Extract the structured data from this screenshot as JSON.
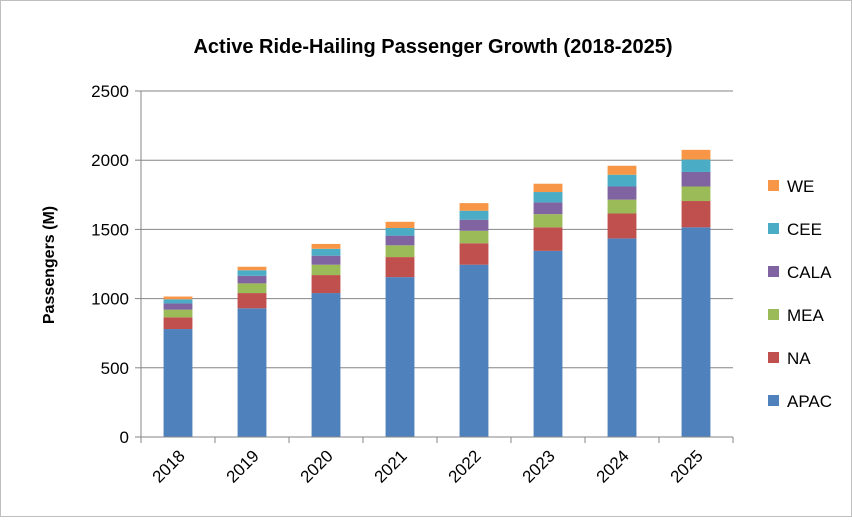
{
  "chart_data": {
    "type": "bar",
    "stacked": true,
    "title": "Active Ride-Hailing Passenger Growth (2018-2025)",
    "ylabel": "Passengers (M)",
    "xlabel": "",
    "ylim": [
      0,
      2500
    ],
    "yticks": [
      0,
      500,
      1000,
      1500,
      2000,
      2500
    ],
    "grid": true,
    "legend_position": "right",
    "categories": [
      "2018",
      "2019",
      "2020",
      "2021",
      "2022",
      "2023",
      "2024",
      "2025"
    ],
    "series": [
      {
        "name": "APAC",
        "color": "#4f81bd",
        "values": [
          780,
          930,
          1040,
          1155,
          1245,
          1345,
          1435,
          1515
        ]
      },
      {
        "name": "NA",
        "color": "#c0504d",
        "values": [
          85,
          110,
          130,
          145,
          155,
          170,
          180,
          190
        ]
      },
      {
        "name": "MEA",
        "color": "#9bbb59",
        "values": [
          55,
          70,
          75,
          85,
          90,
          95,
          100,
          105
        ]
      },
      {
        "name": "CALA",
        "color": "#8064a2",
        "values": [
          45,
          55,
          65,
          70,
          80,
          85,
          95,
          105
        ]
      },
      {
        "name": "CEE",
        "color": "#4bacc6",
        "values": [
          30,
          40,
          50,
          55,
          65,
          75,
          85,
          90
        ]
      },
      {
        "name": "WE",
        "color": "#f79646",
        "values": [
          20,
          25,
          35,
          45,
          55,
          60,
          65,
          70
        ]
      }
    ]
  }
}
